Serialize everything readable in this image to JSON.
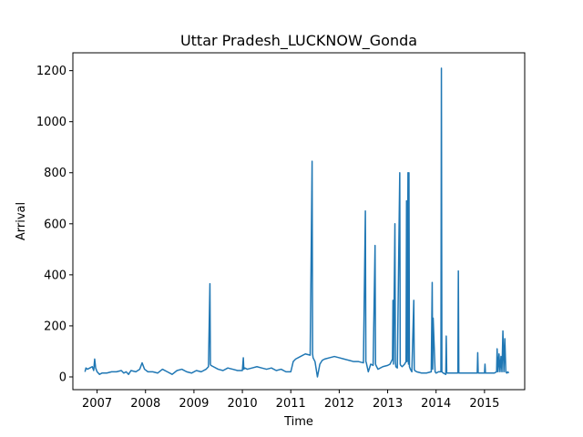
{
  "chart_data": {
    "type": "line",
    "title": "Uttar Pradesh_LUCKNOW_Gonda",
    "xlabel": "Time",
    "ylabel": "Arrival",
    "xlim": [
      2006.5,
      2015.83
    ],
    "ylim": [
      -50,
      1270
    ],
    "x_ticks": [
      2007,
      2008,
      2009,
      2010,
      2011,
      2012,
      2013,
      2014,
      2015
    ],
    "y_ticks": [
      0,
      200,
      400,
      600,
      800,
      1000,
      1200
    ],
    "grid": false,
    "line_color": "#1f77b4",
    "series": [
      {
        "x": [
          2006.75,
          2006.77,
          2006.8,
          2006.85,
          2006.9,
          2006.93,
          2006.95,
          2006.97,
          2007.0,
          2007.05,
          2007.1,
          2007.2,
          2007.3,
          2007.4,
          2007.5,
          2007.55,
          2007.6,
          2007.65,
          2007.7,
          2007.8,
          2007.88,
          2007.93,
          2007.98,
          2008.05,
          2008.15,
          2008.25,
          2008.35,
          2008.45,
          2008.55,
          2008.65,
          2008.75,
          2008.85,
          2008.95,
          2009.05,
          2009.15,
          2009.25,
          2009.3,
          2009.33,
          2009.34,
          2009.35,
          2009.4,
          2009.5,
          2009.6,
          2009.7,
          2009.8,
          2009.9,
          2010.0,
          2010.02,
          2010.03,
          2010.05,
          2010.1,
          2010.2,
          2010.3,
          2010.4,
          2010.5,
          2010.6,
          2010.7,
          2010.8,
          2010.9,
          2011.0,
          2011.05,
          2011.1,
          2011.2,
          2011.3,
          2011.4,
          2011.44,
          2011.45,
          2011.46,
          2011.5,
          2011.55,
          2011.6,
          2011.65,
          2011.7,
          2011.8,
          2011.9,
          2012.0,
          2012.1,
          2012.2,
          2012.3,
          2012.4,
          2012.5,
          2012.54,
          2012.55,
          2012.56,
          2012.6,
          2012.65,
          2012.7,
          2012.74,
          2012.75,
          2012.76,
          2012.8,
          2012.9,
          2013.0,
          2013.05,
          2013.1,
          2013.11,
          2013.12,
          2013.15,
          2013.16,
          2013.17,
          2013.2,
          2013.25,
          2013.26,
          2013.27,
          2013.3,
          2013.35,
          2013.38,
          2013.39,
          2013.4,
          2013.42,
          2013.43,
          2013.44,
          2013.45,
          2013.47,
          2013.5,
          2013.54,
          2013.55,
          2013.56,
          2013.6,
          2013.7,
          2013.8,
          2013.9,
          2013.92,
          2013.93,
          2013.94,
          2013.98,
          2014.0,
          2014.05,
          2014.1,
          2014.11,
          2014.12,
          2014.15,
          2014.2,
          2014.21,
          2014.22,
          2014.3,
          2014.4,
          2014.45,
          2014.46,
          2014.47,
          2014.5,
          2014.6,
          2014.7,
          2014.8,
          2014.85,
          2014.86,
          2014.87,
          2014.95,
          2015.0,
          2015.01,
          2015.02,
          2015.1,
          2015.2,
          2015.25,
          2015.26,
          2015.28,
          2015.3,
          2015.32,
          2015.34,
          2015.36,
          2015.38,
          2015.4,
          2015.42,
          2015.44,
          2015.46,
          2015.48,
          2015.5
        ],
        "y": [
          20,
          35,
          30,
          35,
          40,
          25,
          70,
          35,
          20,
          10,
          15,
          15,
          20,
          20,
          25,
          15,
          20,
          10,
          25,
          20,
          30,
          55,
          30,
          20,
          20,
          15,
          30,
          20,
          10,
          25,
          30,
          20,
          15,
          25,
          20,
          30,
          40,
          365,
          50,
          45,
          40,
          30,
          25,
          35,
          30,
          25,
          25,
          75,
          30,
          35,
          30,
          35,
          40,
          35,
          30,
          35,
          25,
          30,
          20,
          20,
          60,
          70,
          80,
          90,
          85,
          845,
          90,
          75,
          60,
          0,
          50,
          65,
          70,
          75,
          80,
          75,
          70,
          65,
          60,
          60,
          55,
          650,
          60,
          55,
          20,
          50,
          45,
          515,
          50,
          45,
          30,
          40,
          45,
          50,
          70,
          300,
          50,
          600,
          60,
          40,
          35,
          800,
          50,
          45,
          40,
          50,
          60,
          690,
          60,
          800,
          50,
          800,
          40,
          30,
          20,
          300,
          30,
          25,
          20,
          15,
          15,
          20,
          370,
          30,
          230,
          20,
          15,
          20,
          20,
          1210,
          20,
          15,
          10,
          160,
          15,
          15,
          15,
          15,
          415,
          15,
          15,
          15,
          15,
          15,
          15,
          95,
          15,
          15,
          15,
          50,
          15,
          15,
          15,
          20,
          110,
          20,
          90,
          20,
          80,
          20,
          180,
          20,
          150,
          20,
          15,
          20,
          15
        ]
      }
    ]
  }
}
